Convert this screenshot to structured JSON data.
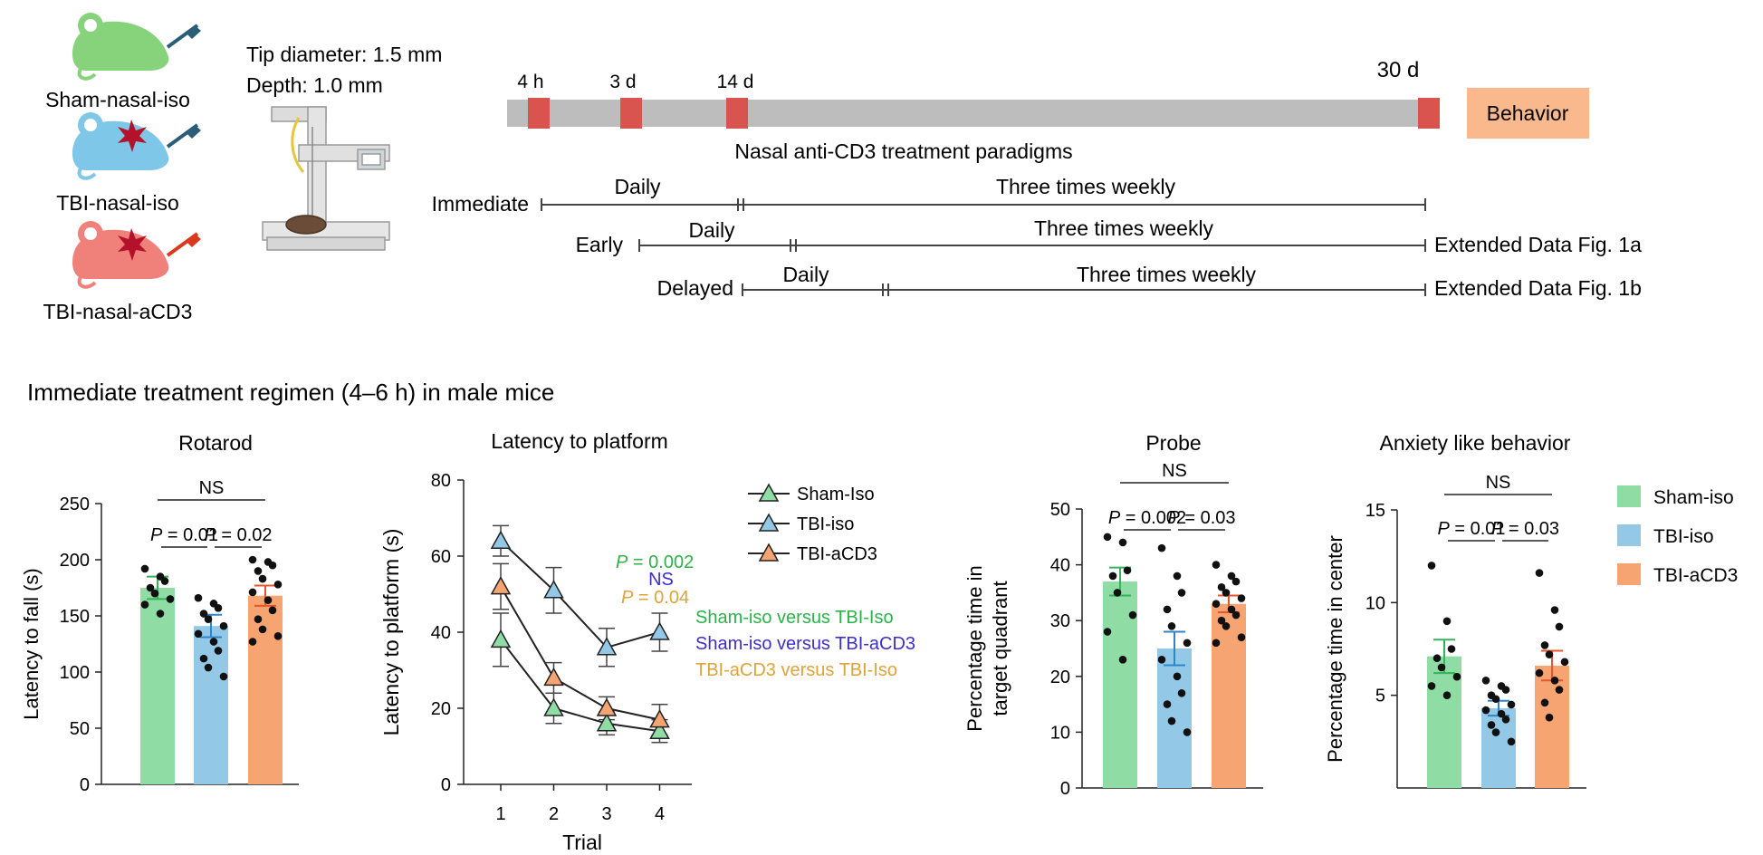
{
  "colors": {
    "sham": "#8fdca5",
    "tbi": "#93c9e6",
    "acd3": "#f5a472",
    "sham_err": "#33b35a",
    "tbi_err": "#2f86c6",
    "acd3_err": "#e8552a",
    "timeline_bar": "#bdbdbd",
    "timeline_mark": "#d9544f",
    "behavior_box": "#f9b98c",
    "p_green": "#2bb34a",
    "p_blue": "#3c2fc9",
    "p_orange": "#e0a23a",
    "mouse_sham": "#86d37b",
    "mouse_tbi": "#7fc7e8",
    "mouse_acd3": "#f0807a"
  },
  "groups_left": [
    "Sham-nasal-iso",
    "TBI-nasal-iso",
    "TBI-nasal-aCD3"
  ],
  "setup": {
    "tip": "Tip diameter: 1.5 mm",
    "depth": "Depth: 1.0 mm"
  },
  "timeline": {
    "ticks": [
      "4 h",
      "3 d",
      "14 d",
      "30 d"
    ],
    "behavior": "Behavior",
    "title": "Nasal anti-CD3 treatment paradigms",
    "rows": [
      {
        "label": "Immediate",
        "daily": "Daily",
        "weekly": "Three times weekly",
        "ref": ""
      },
      {
        "label": "Early",
        "daily": "Daily",
        "weekly": "Three times weekly",
        "ref": "Extended Data Fig. 1a"
      },
      {
        "label": "Delayed",
        "daily": "Daily",
        "weekly": "Three times weekly",
        "ref": "Extended Data Fig. 1b"
      }
    ]
  },
  "section_title": "Immediate treatment regimen (4–6 h) in male mice",
  "chart_data": [
    {
      "type": "bar",
      "title": "Rotarod",
      "ylabel": "Latency to fall (s)",
      "ylim": [
        0,
        250
      ],
      "yticks": [
        0,
        50,
        100,
        150,
        200,
        250
      ],
      "categories": [
        "Sham-iso",
        "TBI-iso",
        "TBI-aCD3"
      ],
      "values": [
        175,
        141,
        168
      ],
      "errors": [
        10,
        10,
        9
      ],
      "points": [
        [
          192,
          185,
          181,
          175,
          170,
          165,
          160,
          152
        ],
        [
          166,
          161,
          157,
          152,
          147,
          141,
          134,
          127,
          119,
          112,
          104,
          96
        ],
        [
          200,
          198,
          195,
          190,
          183,
          178,
          171,
          164,
          155,
          147,
          138,
          132,
          127
        ]
      ],
      "annotations": {
        "top": "NS",
        "p_left": "0.01",
        "p_right": "0.02"
      }
    },
    {
      "type": "line",
      "title": "Latency to platform",
      "xlabel": "Trial",
      "ylabel": "Latency to platform (s)",
      "x": [
        1,
        2,
        3,
        4
      ],
      "ylim": [
        0,
        80
      ],
      "yticks": [
        0,
        20,
        40,
        60,
        80
      ],
      "series": [
        {
          "name": "Sham-Iso",
          "values": [
            38,
            20,
            16,
            14
          ],
          "errors": [
            7,
            4,
            3,
            3
          ]
        },
        {
          "name": "TBI-iso",
          "values": [
            64,
            51,
            36,
            40
          ],
          "errors": [
            4,
            6,
            5,
            5
          ]
        },
        {
          "name": "TBI-aCD3",
          "values": [
            52,
            28,
            20,
            17
          ],
          "errors": [
            6,
            4,
            3,
            4
          ]
        }
      ],
      "stats": [
        {
          "text": "P = 0.002",
          "comparison": "Sham-iso versus TBI-Iso"
        },
        {
          "text": "NS",
          "comparison": "Sham-iso versus TBI-aCD3"
        },
        {
          "text": "P = 0.04",
          "comparison": "TBI-aCD3 versus TBI-Iso"
        }
      ]
    },
    {
      "type": "bar",
      "title": "Probe",
      "ylabel": "Percentage time in target quadrant",
      "ylabel_lines": [
        "Percentage time in",
        "target quadrant"
      ],
      "ylim": [
        0,
        50
      ],
      "yticks": [
        0,
        10,
        20,
        30,
        40,
        50
      ],
      "categories": [
        "Sham-iso",
        "TBI-iso",
        "TBI-aCD3"
      ],
      "values": [
        37,
        25,
        33
      ],
      "errors": [
        2.5,
        3,
        1.5
      ],
      "points": [
        [
          45,
          44,
          39,
          38,
          35,
          31,
          28,
          23
        ],
        [
          43,
          38,
          35,
          32,
          29,
          26,
          23,
          20,
          17,
          15,
          12,
          10
        ],
        [
          40,
          38,
          37,
          36,
          35,
          34,
          33,
          32,
          31,
          30,
          29,
          27,
          26
        ]
      ],
      "annotations": {
        "top": "NS",
        "p_left": "0.002",
        "p_right": "0.03"
      }
    },
    {
      "type": "bar",
      "title": "Anxiety like behavior",
      "ylabel": "Percentage time in center",
      "ylim": [
        0,
        15
      ],
      "yticks": [
        5,
        10,
        15
      ],
      "categories": [
        "Sham-iso",
        "TBI-iso",
        "TBI-aCD3"
      ],
      "values": [
        7.1,
        4.3,
        6.6
      ],
      "errors": [
        0.9,
        0.4,
        0.8
      ],
      "points": [
        [
          12,
          9,
          7.5,
          7,
          6.5,
          6,
          5.5,
          5
        ],
        [
          5.8,
          5.5,
          5.3,
          5,
          4.8,
          4.5,
          4.2,
          4,
          3.7,
          3.4,
          3,
          2.5
        ],
        [
          11.6,
          9.6,
          8.7,
          7.7,
          7.2,
          6.8,
          6.2,
          5.8,
          5.3,
          4.6,
          3.8
        ]
      ],
      "annotations": {
        "top": "NS",
        "p_left": "0.01",
        "p_right": "0.03"
      },
      "legend": [
        "Sham-iso",
        "TBI-iso",
        "TBI-aCD3"
      ]
    }
  ]
}
